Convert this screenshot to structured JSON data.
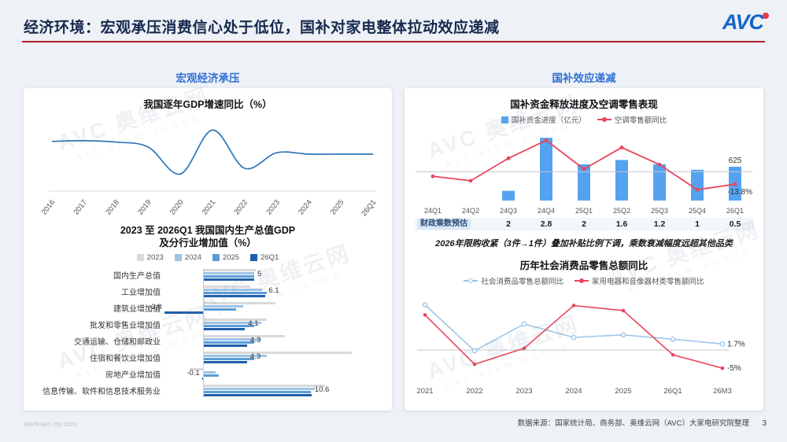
{
  "header": {
    "title": "经济环境：宏观承压消费信心处于低位，国补对家电整体拉动效应递减",
    "logo_text": "AVC"
  },
  "left_panel": {
    "section_title": "宏观经济承压"
  },
  "right_panel": {
    "section_title": "国补效应递减",
    "multiplier": {
      "label": "财政乘数预估",
      "values": [
        "",
        "",
        "2",
        "2.8",
        "2",
        "1.6",
        "1.2",
        "1",
        "0.5"
      ]
    },
    "note": "2026年限购收紧（3件→1件）叠加补贴比例下调，乘数衰减幅度远超其他品类"
  },
  "footer": {
    "website": "www.avc-mr.com",
    "source": "数据来源：国家统计局、商务部、奥维云网（AVC）大家电研究院整理",
    "page": "3"
  },
  "watermark": {
    "line1": "AVC 奥维云网",
    "line2": "ALL VIEW CLOUD"
  },
  "colors": {
    "accent_red": "#b01e2e",
    "brand_blue": "#1565c8",
    "section_blue": "#2e6fd6"
  },
  "chart_data": [
    {
      "id": "gdp_growth",
      "type": "line",
      "title": "我国逐年GDP增速同比（%）",
      "categories": [
        "2016",
        "2017",
        "2018",
        "2019",
        "2020",
        "2021",
        "2022",
        "2023",
        "2024",
        "2025",
        "26Q1"
      ],
      "values": [
        6.8,
        6.9,
        6.7,
        6.0,
        2.2,
        8.4,
        3.0,
        5.2,
        5.0,
        5.0,
        5.0
      ],
      "line_color": "#2e75b6",
      "ylim": [
        0,
        10
      ],
      "grid": false
    },
    {
      "id": "gdp_by_industry",
      "type": "bar",
      "orientation": "horizontal",
      "title_line1": "2023 至 2026Q1 我国国内生产总值GDP",
      "title_line2": "及分行业增加值（%）",
      "legend": [
        "2023",
        "2024",
        "2025",
        "26Q1"
      ],
      "series_colors": [
        "#d9d9d9",
        "#9dc3e6",
        "#5b9bd5",
        "#1f5fa9"
      ],
      "categories": [
        "国内生产总值",
        "工业增加值",
        "建筑业增加值",
        "批发和零售业增加值",
        "交通运输、仓储和邮政业",
        "住宿和餐饮业增加值",
        "房地产业增加值",
        "信息传输、软件和信息技术服务业"
      ],
      "series": [
        {
          "name": "2023",
          "values": [
            5.2,
            4.6,
            7.1,
            6.2,
            8.0,
            14.5,
            -1.3,
            11.9
          ]
        },
        {
          "name": "2024",
          "values": [
            5.0,
            5.8,
            3.9,
            5.7,
            5.7,
            6.2,
            1.2,
            10.9
          ]
        },
        {
          "name": "2025",
          "values": [
            5.0,
            6.2,
            3.2,
            5.0,
            5.0,
            5.0,
            1.5,
            10.5
          ]
        },
        {
          "name": "26Q1",
          "values": [
            5.0,
            6.1,
            -3.8,
            4.1,
            4.3,
            4.3,
            -0.1,
            10.6
          ]
        }
      ],
      "value_labels": [
        "5",
        "6.1",
        "-3.8",
        "4.1",
        "4.3",
        "4.3",
        "-0.1",
        "10.6"
      ],
      "xlim": [
        -5,
        16
      ]
    },
    {
      "id": "subsidy_funds_vs_ac_retail",
      "type": "bar",
      "title": "国补资金释放进度及空调零售表现",
      "legend": [
        {
          "label": "国补资金进度（亿元）",
          "color": "#55a3f0",
          "marker": "square"
        },
        {
          "label": "空调零售额同比",
          "color": "#e8455c",
          "marker": "line"
        }
      ],
      "categories": [
        "24Q1",
        "24Q2",
        "24Q3",
        "24Q4",
        "25Q1",
        "25Q2",
        "25Q3",
        "25Q4",
        "26Q1"
      ],
      "bars": [
        0,
        0,
        180,
        1160,
        670,
        750,
        670,
        570,
        625
      ],
      "line": [
        -5,
        -10,
        15,
        35,
        3,
        27,
        8,
        -20,
        -13.8
      ],
      "bar_label": {
        "index": 8,
        "text": "625"
      },
      "line_label": {
        "index": 8,
        "text": "-13.8%"
      },
      "bar_ylim": [
        0,
        1250
      ],
      "line_ylim": [
        -32,
        45
      ],
      "zero_line": true
    },
    {
      "id": "retail_yoy",
      "type": "line",
      "title": "历年社会消费品零售总额同比",
      "categories": [
        "2021",
        "2022",
        "2023",
        "2024",
        "2025",
        "26Q1",
        "26M3"
      ],
      "series": [
        {
          "name": "社会消费品零售总额同比",
          "color": "#9fc5e8",
          "values": [
            12.5,
            -0.2,
            7.2,
            3.5,
            4.2,
            3.0,
            1.7
          ],
          "end_label": "1.7%"
        },
        {
          "name": "家用电器和音像器材类零售额同比",
          "color": "#e8455c",
          "values": [
            9.7,
            -3.9,
            0.5,
            12.3,
            10.9,
            -1.3,
            -5
          ],
          "end_label": "-5%"
        }
      ],
      "ylim": [
        -8,
        15
      ],
      "zero_line": true,
      "legend_position": "top"
    }
  ]
}
